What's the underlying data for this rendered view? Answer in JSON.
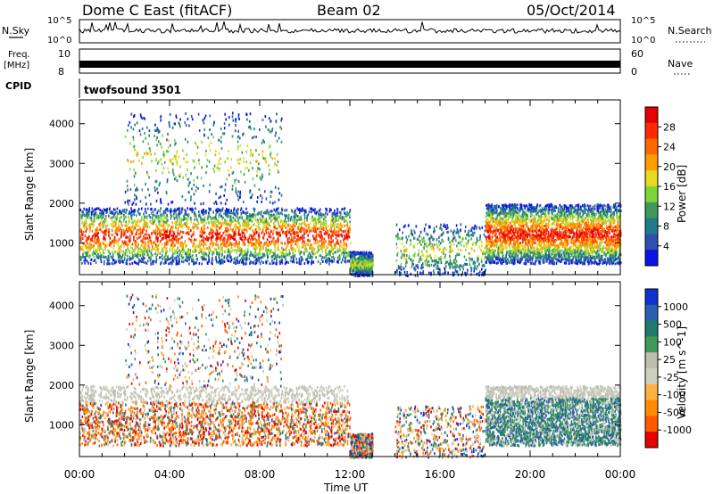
{
  "header": {
    "station": "Dome C East (fitACF)",
    "beam": "Beam 02",
    "date": "05/Oct/2014"
  },
  "panels": {
    "nsky_label": "N.Sky",
    "nsky_ticks": [
      "10^5",
      "10^0"
    ],
    "nsearch_ticks": [
      "10^5",
      "10^0"
    ],
    "nsearch_label": "N.Search",
    "freq_label": "Freq.",
    "freq_unit": "[MHz]",
    "freq_ticks": [
      "10",
      "8"
    ],
    "nave_ticks": [
      "60",
      "0"
    ],
    "nave_label": "Nave",
    "cpid_label": "CPID",
    "cpid_value": "twofsound 3501"
  },
  "colors": {
    "power": [
      "#0a14e6",
      "#2c4fb0",
      "#1f7a8c",
      "#3f9a5a",
      "#7cd63a",
      "#e8d820",
      "#ff9d00",
      "#ff6a00",
      "#ff2a00",
      "#e60000"
    ],
    "velocity": [
      "#e60000",
      "#ff5a00",
      "#ff8c00",
      "#ffb040",
      "#cfcfc0",
      "#bdbdb0",
      "#3f9a5a",
      "#1f7a6a",
      "#2a5fb0",
      "#1030d0"
    ],
    "trace": "#000000"
  },
  "chart_data": [
    {
      "type": "heatmap",
      "name": "power",
      "xlabel": "Time UT",
      "ylabel": "Slant Range [km]",
      "xlim": [
        0,
        24
      ],
      "ylim": [
        200,
        4600
      ],
      "x_ticks": [
        "00:00",
        "04:00",
        "08:00",
        "12:00",
        "16:00",
        "20:00",
        "00:00"
      ],
      "y_ticks": [
        1000,
        2000,
        3000,
        4000
      ],
      "colorbar": {
        "label": "Power [dB]",
        "ticks": [
          "28",
          "24",
          "20",
          "16",
          "12",
          "8",
          "4"
        ],
        "range": [
          0,
          32
        ]
      },
      "scatter_bands": [
        {
          "t": [
            0,
            12
          ],
          "range_km": [
            500,
            1900
          ],
          "level": "high"
        },
        {
          "t": [
            12,
            13
          ],
          "range_km": [
            200,
            800
          ],
          "level": "medium"
        },
        {
          "t": [
            14,
            18
          ],
          "range_km": [
            200,
            1500
          ],
          "level": "sparse"
        },
        {
          "t": [
            18,
            24
          ],
          "range_km": [
            500,
            2000
          ],
          "level": "high"
        },
        {
          "t": [
            2,
            9
          ],
          "range_km": [
            2000,
            4300
          ],
          "level": "sparse"
        }
      ]
    },
    {
      "type": "heatmap",
      "name": "velocity",
      "xlabel": "Time UT",
      "ylabel": "Slant Range [km]",
      "xlim": [
        0,
        24
      ],
      "ylim": [
        200,
        4600
      ],
      "x_ticks": [
        "00:00",
        "04:00",
        "08:00",
        "12:00",
        "16:00",
        "20:00",
        "00:00"
      ],
      "y_ticks": [
        1000,
        2000,
        3000,
        4000
      ],
      "colorbar": {
        "label": "Velocity [m s^-1]",
        "ticks": [
          "1000",
          "500",
          "100",
          "25",
          "-25",
          "-100",
          "-500",
          "-1000"
        ],
        "range": [
          -1200,
          1200
        ]
      },
      "scatter_bands": [
        {
          "t": [
            0,
            12
          ],
          "range_km": [
            500,
            2000
          ],
          "sign": "negative"
        },
        {
          "t": [
            12,
            13
          ],
          "range_km": [
            200,
            800
          ],
          "sign": "mixed"
        },
        {
          "t": [
            14,
            18
          ],
          "range_km": [
            200,
            1500
          ],
          "sign": "sparse"
        },
        {
          "t": [
            18,
            24
          ],
          "range_km": [
            500,
            2000
          ],
          "sign": "positive"
        },
        {
          "t": [
            2,
            9
          ],
          "range_km": [
            2000,
            4300
          ],
          "sign": "sparse"
        }
      ]
    }
  ]
}
